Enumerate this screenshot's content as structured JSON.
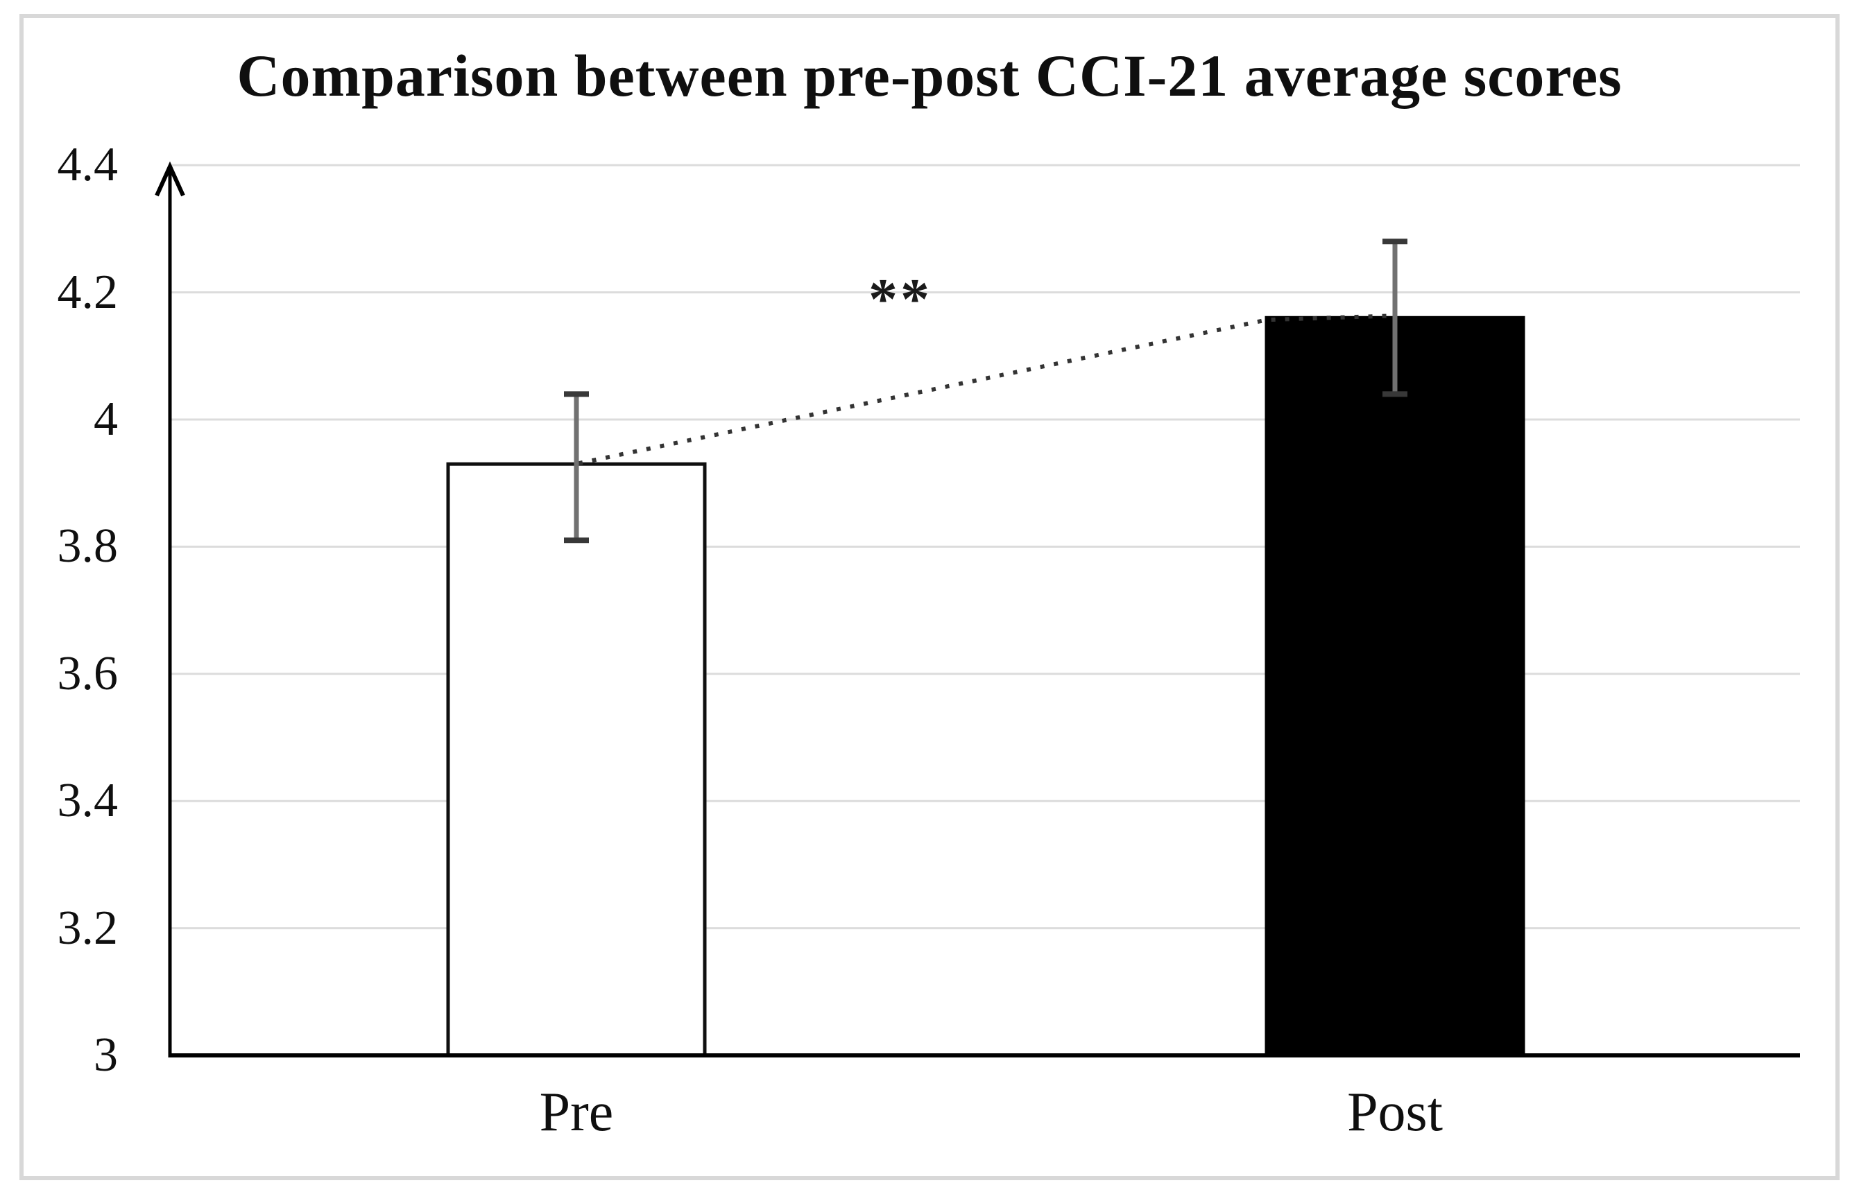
{
  "chart_data": {
    "type": "bar",
    "title": "Comparison between pre-post CCI-21 average scores",
    "categories": [
      "Pre",
      "Post"
    ],
    "values": [
      3.93,
      4.16
    ],
    "error_bars": {
      "lower": [
        3.81,
        4.04
      ],
      "upper": [
        4.04,
        4.28
      ]
    },
    "significance_annotation": "**",
    "connector_line": "dotted line linking the tops of the Pre and Post bars",
    "ylim": [
      3,
      4.4
    ],
    "ytick_step": 0.2,
    "ytick_labels": [
      "3",
      "3.2",
      "3.4",
      "3.6",
      "3.8",
      "4",
      "4.2",
      "4.4"
    ],
    "xlabel": "",
    "ylabel": "",
    "grid": true,
    "legend": null,
    "bar_styles": [
      {
        "category": "Pre",
        "fill": "#ffffff",
        "border": "#0f0f0f"
      },
      {
        "category": "Post",
        "fill": "#000000",
        "border": "#000000"
      }
    ],
    "colors": {
      "gridline": "#dcdcdc",
      "axis": "#000000",
      "error_bar_line": "#717171",
      "error_bar_cap": "#383838",
      "dotted_line": "#333333",
      "frame_border": "#d8d8d8",
      "text": "#0f0f0f"
    }
  }
}
